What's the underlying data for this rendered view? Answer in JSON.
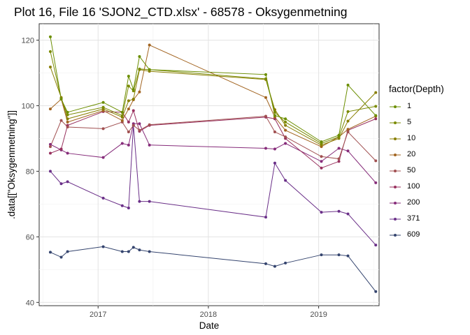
{
  "chart_data": {
    "type": "line",
    "title": "Plot 16, File 16 'SJON2_CTD.xlsx' - 68578  -  Oksygenmetning",
    "xlabel": "Date",
    "ylabel": ".data[[\"Oksygenmetning\"]]",
    "ylim": [
      39,
      125
    ],
    "yticks": [
      40,
      60,
      80,
      100,
      120
    ],
    "xlim": [
      "2016-06-20",
      "2019-07-20"
    ],
    "xticks": [
      {
        "label": "2017",
        "date": "2017-01-01"
      },
      {
        "label": "2018",
        "date": "2018-01-01"
      },
      {
        "label": "2019",
        "date": "2019-01-01"
      }
    ],
    "grid": true,
    "legend_title": "factor(Depth)",
    "legend_position": "right",
    "dates": [
      "2016-07-27",
      "2016-09-01",
      "2016-09-22",
      "2017-01-18",
      "2017-03-22",
      "2017-04-12",
      "2017-04-28",
      "2017-05-18",
      "2017-06-20",
      "2018-07-10",
      "2018-08-09",
      "2018-09-13",
      "2019-01-10",
      "2019-03-09",
      "2019-04-08",
      "2019-07-09"
    ],
    "series": [
      {
        "name": "1",
        "color": "#6b8e00",
        "values": [
          121.0,
          102.0,
          98.0,
          101.0,
          98.0,
          109.0,
          105.0,
          115.0,
          111.0,
          109.5,
          97.0,
          96.0,
          89.0,
          91.0,
          106.3,
          97.0
        ]
      },
      {
        "name": "5",
        "color": "#7a8a00",
        "values": [
          116.5,
          102.2,
          97.2,
          99.5,
          97.0,
          106.0,
          104.5,
          111.2,
          111.0,
          108.2,
          98.0,
          95.0,
          88.5,
          90.5,
          98.2,
          99.8
        ]
      },
      {
        "name": "10",
        "color": "#887e00",
        "values": [
          111.8,
          102.5,
          96.0,
          99.0,
          96.5,
          101.5,
          102.0,
          111.0,
          110.5,
          108.0,
          98.8,
          94.0,
          88.0,
          90.0,
          95.3,
          104.0
        ]
      },
      {
        "name": "20",
        "color": "#a26420",
        "values": [
          99.0,
          102.0,
          95.0,
          98.5,
          95.5,
          99.0,
          101.8,
          104.2,
          118.5,
          102.5,
          96.5,
          92.5,
          87.5,
          90.5,
          92.8,
          96.8
        ]
      },
      {
        "name": "50",
        "color": "#a04f50",
        "values": [
          87.5,
          95.5,
          93.5,
          93.0,
          95.0,
          92.0,
          94.0,
          92.5,
          94.2,
          96.8,
          92.0,
          90.5,
          84.5,
          83.8,
          92.0,
          83.2
        ]
      },
      {
        "name": "100",
        "color": "#98305e",
        "values": [
          85.5,
          86.8,
          94.0,
          98.2,
          98.0,
          95.0,
          98.5,
          92.2,
          94.0,
          96.5,
          96.0,
          90.0,
          81.0,
          83.0,
          92.5,
          96.0
        ]
      },
      {
        "name": "200",
        "color": "#862c7a",
        "values": [
          88.2,
          86.5,
          85.5,
          84.2,
          88.5,
          88.0,
          94.5,
          94.5,
          88.0,
          87.0,
          86.8,
          88.5,
          83.0,
          87.0,
          86.2,
          76.5
        ]
      },
      {
        "name": "371",
        "color": "#6a2f88",
        "values": [
          80.0,
          76.2,
          76.8,
          71.8,
          69.5,
          68.8,
          94.0,
          70.8,
          70.8,
          66.0,
          82.5,
          77.2,
          67.5,
          67.8,
          67.0,
          57.5
        ]
      },
      {
        "name": "609",
        "color": "#34446e",
        "values": [
          55.3,
          53.8,
          55.5,
          57.0,
          55.5,
          55.5,
          56.8,
          56.0,
          55.5,
          51.8,
          51.0,
          52.0,
          54.5,
          54.5,
          54.2,
          43.3
        ]
      }
    ]
  }
}
